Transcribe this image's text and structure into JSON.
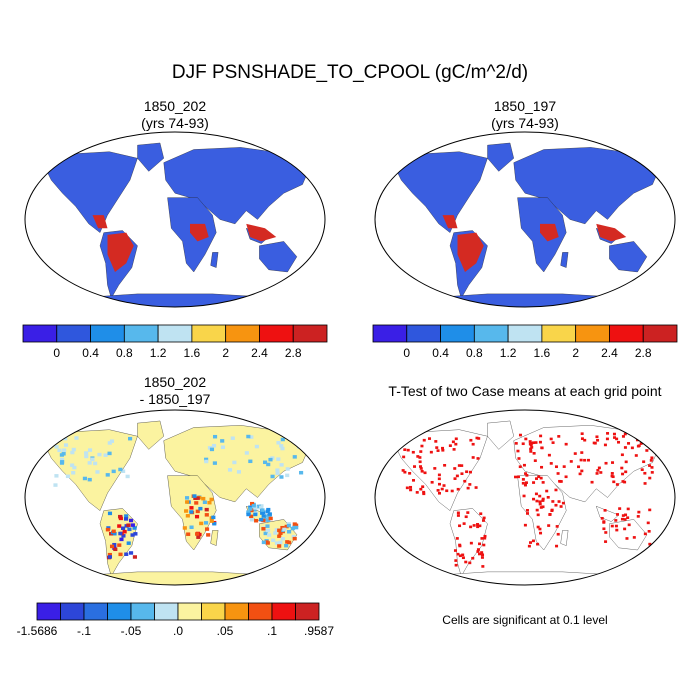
{
  "title": "DJF PSNSHADE_TO_CPOOL (gC/m^2/d)",
  "panels": [
    {
      "title_line1": "1850_202",
      "title_line2": "(yrs 74-93)"
    },
    {
      "title_line1": "1850_197",
      "title_line2": "(yrs 74-93)"
    },
    {
      "title_line1": "1850_202",
      "title_line2": "- 1850_197"
    },
    {
      "title_line1": "T-Test of two Case means at each grid point",
      "title_line2": ""
    }
  ],
  "colorbars": {
    "abs": {
      "colors": [
        "#3a1fe6",
        "#2f57dd",
        "#1f8ee8",
        "#57b8ec",
        "#bfe3f2",
        "#f9d54a",
        "#f79410",
        "#ee1111",
        "#cc2222"
      ],
      "labels": [
        "0",
        "0.4",
        "0.8",
        "1.2",
        "1.6",
        "2",
        "2.4",
        "2.8"
      ]
    },
    "diff": {
      "colors": [
        "#3a1fe6",
        "#2d46d8",
        "#2a6fe0",
        "#1f8ee8",
        "#57b8ec",
        "#bfe3f2",
        "#fbf3a0",
        "#f9d54a",
        "#f79410",
        "#f25012",
        "#ee1111",
        "#cc2222"
      ],
      "labels": [
        "-1.5686",
        "-.1",
        "-.05",
        ".0",
        ".05",
        ".1",
        ".9587"
      ]
    }
  },
  "significance_note": "Cells are significant at 0.1 level",
  "colors": {
    "ocean": "#ffffff",
    "land_abs": "#3a5ee0",
    "tropics_abs": "#d42a22",
    "land_diff": "#fbf3a0",
    "sig_cells": "#ee1111"
  }
}
